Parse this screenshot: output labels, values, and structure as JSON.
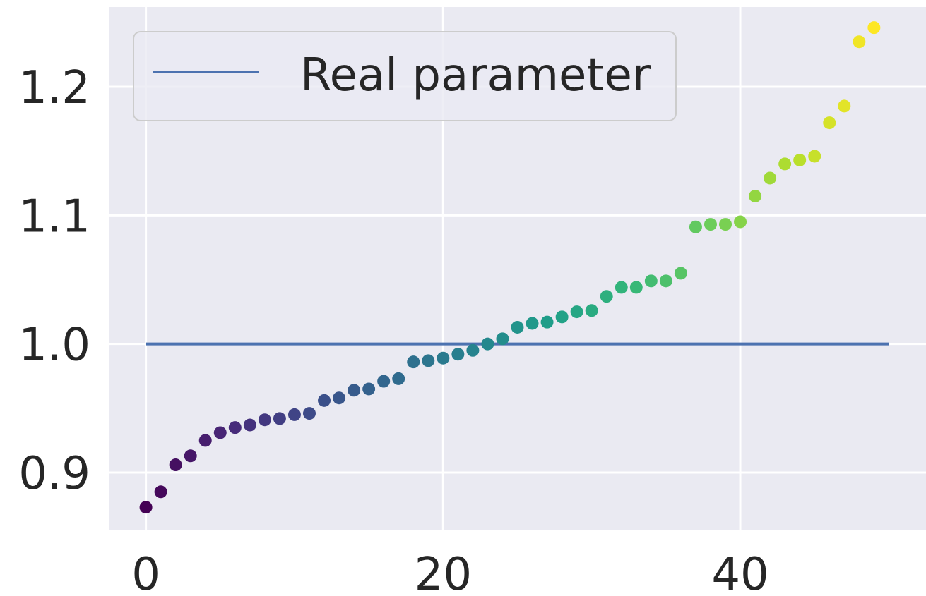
{
  "chart_data": {
    "type": "scatter",
    "title": "",
    "xlabel": "",
    "ylabel": "",
    "xlim": [
      -2.5,
      52.5
    ],
    "ylim": [
      0.855,
      1.262
    ],
    "xticks": [
      0,
      20,
      40
    ],
    "xtick_labels": [
      "0",
      "20",
      "40"
    ],
    "yticks": [
      0.9,
      1.0,
      1.1,
      1.2
    ],
    "ytick_labels": [
      "0.9",
      "1.0",
      "1.1",
      "1.2"
    ],
    "grid": true,
    "legend": {
      "placement": "top-left",
      "entries": [
        "Real parameter"
      ]
    },
    "colormap": "viridis",
    "background": "#eaeaf2",
    "reference_line": {
      "name": "Real parameter",
      "y": 1.0,
      "x": [
        0,
        50
      ],
      "color": "#4c72b0"
    },
    "series": [
      {
        "x": [
          0,
          1,
          2,
          3,
          4,
          5,
          6,
          7,
          8,
          9,
          10,
          11,
          12,
          13,
          14,
          15,
          16,
          17,
          18,
          19,
          20,
          21,
          22,
          23,
          24,
          25,
          26,
          27,
          28,
          29,
          30,
          31,
          32,
          33,
          34,
          35,
          36,
          37,
          38,
          39,
          40,
          41,
          42,
          43,
          44,
          45,
          46,
          47,
          48,
          49
        ],
        "y": [
          0.873,
          0.885,
          0.906,
          0.913,
          0.925,
          0.931,
          0.935,
          0.937,
          0.941,
          0.942,
          0.945,
          0.946,
          0.956,
          0.958,
          0.964,
          0.965,
          0.971,
          0.973,
          0.986,
          0.987,
          0.989,
          0.992,
          0.995,
          1.0,
          1.004,
          1.013,
          1.016,
          1.017,
          1.021,
          1.025,
          1.026,
          1.037,
          1.044,
          1.044,
          1.049,
          1.049,
          1.055,
          1.091,
          1.093,
          1.093,
          1.095,
          1.115,
          1.129,
          1.14,
          1.143,
          1.146,
          1.172,
          1.185,
          1.235,
          1.246
        ]
      }
    ]
  }
}
